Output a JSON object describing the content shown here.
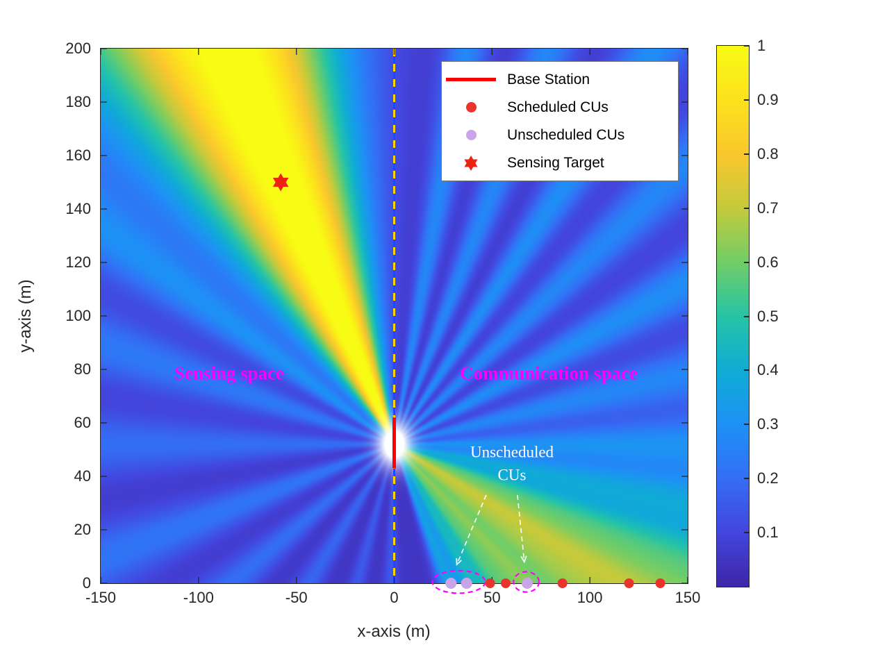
{
  "figure": {
    "xlabel": "x-axis (m)",
    "ylabel": "y-axis (m)"
  },
  "legend": {
    "items": [
      {
        "label": "Base Station",
        "marker": "line",
        "color": "#ff0000"
      },
      {
        "label": "Scheduled CUs",
        "marker": "dot",
        "color": "#e8342a"
      },
      {
        "label": "Unscheduled CUs",
        "marker": "dot",
        "color": "#c9a4e8"
      },
      {
        "label": "Sensing Target",
        "marker": "star",
        "color": "#ee2211"
      }
    ]
  },
  "annotations": {
    "sensing_space": "Sensing space",
    "communication_space": "Communication space",
    "unscheduled_line1": "Unscheduled",
    "unscheduled_line2": "CUs",
    "label_color": "#ff00ff",
    "unscheduled_text_color": "#ffffff"
  },
  "chart_data": {
    "type": "heatmap",
    "title": "",
    "xlabel": "x-axis (m)",
    "ylabel": "y-axis (m)",
    "xlim": [
      -150,
      150
    ],
    "ylim": [
      0,
      200
    ],
    "x_ticks": [
      -150,
      -100,
      -50,
      0,
      50,
      100,
      150
    ],
    "y_ticks": [
      0,
      20,
      40,
      60,
      80,
      100,
      120,
      140,
      160,
      180,
      200
    ],
    "colorbar": {
      "range": [
        0,
        1
      ],
      "ticks": [
        1,
        0.9,
        0.8,
        0.7,
        0.6,
        0.5,
        0.4,
        0.3,
        0.2,
        0.1
      ]
    },
    "boundary_x": 0,
    "base_station": {
      "x": 0,
      "y_center": 52,
      "y_from": 43,
      "y_to": 62
    },
    "sensing_target": [
      -58,
      150
    ],
    "scheduled_cus": [
      [
        49,
        0
      ],
      [
        57,
        0
      ],
      [
        86,
        0
      ],
      [
        120,
        0
      ],
      [
        136,
        0
      ]
    ],
    "unscheduled_cus": [
      [
        29,
        0
      ],
      [
        37,
        0
      ],
      [
        68,
        0
      ]
    ],
    "highlight_ellipses": [
      {
        "cx": 33,
        "cy": 0.5,
        "rx": 13.5,
        "ry": 4.2
      },
      {
        "cx": 67.5,
        "cy": 0.5,
        "rx": 6.5,
        "ry": 3.8
      }
    ],
    "annotation_arrows": [
      {
        "from": [
          47,
          33
        ],
        "to": [
          32,
          7
        ]
      },
      {
        "from": [
          63,
          33
        ],
        "to": [
          66.5,
          8
        ]
      }
    ],
    "background_level": 0.05,
    "beams": [
      {
        "angle_deg": 120,
        "amplitude": 1.0,
        "sigma_deg": 13
      },
      {
        "angle_deg": 152,
        "amplitude": 0.2,
        "sigma_deg": 3.5
      },
      {
        "angle_deg": 166,
        "amplitude": 0.18,
        "sigma_deg": 3.5
      },
      {
        "angle_deg": 180,
        "amplitude": 0.15,
        "sigma_deg": 3.5
      },
      {
        "angle_deg": 196,
        "amplitude": 0.17,
        "sigma_deg": 3.5
      },
      {
        "angle_deg": 212,
        "amplitude": 0.15,
        "sigma_deg": 3.5
      },
      {
        "angle_deg": 230,
        "amplitude": 0.13,
        "sigma_deg": 3.5
      },
      {
        "angle_deg": 250,
        "amplitude": 0.1,
        "sigma_deg": 3
      },
      {
        "angle_deg": 268,
        "amplitude": 0.1,
        "sigma_deg": 3
      },
      {
        "angle_deg": -62,
        "amplitude": 0.3,
        "sigma_deg": 3.5
      },
      {
        "angle_deg": -53,
        "amplitude": 0.35,
        "sigma_deg": 3.5
      },
      {
        "angle_deg": -45,
        "amplitude": 0.42,
        "sigma_deg": 3.5
      },
      {
        "angle_deg": -38,
        "amplitude": 0.46,
        "sigma_deg": 3.5
      },
      {
        "angle_deg": -30,
        "amplitude": 0.5,
        "sigma_deg": 4
      },
      {
        "angle_deg": -23,
        "amplitude": 0.48,
        "sigma_deg": 3.5
      },
      {
        "angle_deg": -16,
        "amplitude": 0.42,
        "sigma_deg": 3.5
      },
      {
        "angle_deg": -8,
        "amplitude": 0.3,
        "sigma_deg": 3
      },
      {
        "angle_deg": 0,
        "amplitude": 0.25,
        "sigma_deg": 3
      },
      {
        "angle_deg": 10,
        "amplitude": 0.22,
        "sigma_deg": 3
      },
      {
        "angle_deg": 22,
        "amplitude": 0.24,
        "sigma_deg": 3
      },
      {
        "angle_deg": 35,
        "amplitude": 0.22,
        "sigma_deg": 3
      },
      {
        "angle_deg": 48,
        "amplitude": 0.24,
        "sigma_deg": 3
      },
      {
        "angle_deg": 62,
        "amplitude": 0.22,
        "sigma_deg": 3
      },
      {
        "angle_deg": 76,
        "amplitude": 0.22,
        "sigma_deg": 3
      }
    ],
    "bs_glow": {
      "strength": 1.4,
      "falloff": 70
    },
    "colors": {
      "scheduled": "#e8342a",
      "unscheduled": "#c9a4e8",
      "base_station": "#ff0000",
      "target": "#ee2211",
      "ellipse": "#ff00ff",
      "arrow": "#ffffff",
      "boundary_yellow": "#ffd700",
      "boundary_blue": "#2545ff",
      "axis": "#262626"
    },
    "colormap": {
      "name": "parula",
      "stops": [
        [
          0.0,
          [
            62,
            38,
            168
          ]
        ],
        [
          0.1,
          [
            67,
            70,
            222
          ]
        ],
        [
          0.2,
          [
            52,
            110,
            245
          ]
        ],
        [
          0.3,
          [
            30,
            145,
            245
          ]
        ],
        [
          0.4,
          [
            15,
            172,
            213
          ]
        ],
        [
          0.5,
          [
            38,
            196,
            166
          ]
        ],
        [
          0.6,
          [
            113,
            205,
            103
          ]
        ],
        [
          0.7,
          [
            196,
            202,
            60
          ]
        ],
        [
          0.8,
          [
            250,
            199,
            45
          ]
        ],
        [
          0.9,
          [
            252,
            225,
            30
          ]
        ],
        [
          1.0,
          [
            248,
            251,
            19
          ]
        ]
      ]
    }
  }
}
